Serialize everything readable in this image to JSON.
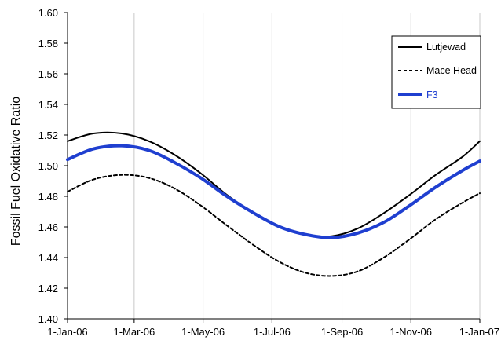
{
  "chart_data": {
    "type": "line",
    "title": "",
    "xlabel": "",
    "ylabel": "Fossil Fuel Oxidative Ratio",
    "x_ticks": [
      "1-Jan-06",
      "1-Mar-06",
      "1-May-06",
      "1-Jul-06",
      "1-Sep-06",
      "1-Nov-06",
      "1-Jan-07"
    ],
    "x_tick_dates": [
      "2006-01-01",
      "2006-03-01",
      "2006-05-01",
      "2006-07-01",
      "2006-09-01",
      "2006-11-01",
      "2007-01-01"
    ],
    "y_ticks": [
      "1.40",
      "1.42",
      "1.44",
      "1.46",
      "1.48",
      "1.50",
      "1.52",
      "1.54",
      "1.56",
      "1.58",
      "1.60"
    ],
    "xlim": [
      "2006-01-01",
      "2007-01-01"
    ],
    "ylim": [
      1.4,
      1.6
    ],
    "grid": "vertical lines at x ticks",
    "legend_position": "top-right",
    "series": [
      {
        "name": "Lutjewad",
        "style": "solid",
        "color": "#000000",
        "x": [
          "2006-01-01",
          "2006-01-24",
          "2006-02-18",
          "2006-03-14",
          "2006-04-06",
          "2006-04-29",
          "2006-05-22",
          "2006-06-15",
          "2006-07-08",
          "2006-07-31",
          "2006-08-23",
          "2006-09-15",
          "2006-10-08",
          "2006-10-31",
          "2006-11-23",
          "2006-12-17",
          "2007-01-01"
        ],
        "y": [
          1.516,
          1.521,
          1.521,
          1.516,
          1.507,
          1.495,
          1.481,
          1.469,
          1.46,
          1.455,
          1.454,
          1.459,
          1.469,
          1.481,
          1.494,
          1.506,
          1.516
        ]
      },
      {
        "name": "Mace Head",
        "style": "dashed",
        "color": "#000000",
        "x": [
          "2006-01-01",
          "2006-01-24",
          "2006-02-18",
          "2006-03-14",
          "2006-04-06",
          "2006-04-29",
          "2006-05-22",
          "2006-06-15",
          "2006-07-08",
          "2006-07-31",
          "2006-08-23",
          "2006-09-15",
          "2006-10-08",
          "2006-10-31",
          "2006-11-23",
          "2006-12-17",
          "2007-01-01"
        ],
        "y": [
          1.483,
          1.491,
          1.494,
          1.492,
          1.485,
          1.474,
          1.461,
          1.448,
          1.437,
          1.43,
          1.428,
          1.431,
          1.44,
          1.452,
          1.465,
          1.476,
          1.482
        ]
      },
      {
        "name": "F3",
        "style": "solid-thick",
        "color": "#1f3fd0",
        "x": [
          "2006-01-01",
          "2006-01-24",
          "2006-02-18",
          "2006-03-14",
          "2006-04-06",
          "2006-04-29",
          "2006-05-22",
          "2006-06-15",
          "2006-07-08",
          "2006-07-31",
          "2006-08-23",
          "2006-09-15",
          "2006-10-08",
          "2006-10-31",
          "2006-11-23",
          "2006-12-17",
          "2007-01-01"
        ],
        "y": [
          1.504,
          1.511,
          1.513,
          1.51,
          1.502,
          1.492,
          1.48,
          1.469,
          1.46,
          1.455,
          1.453,
          1.456,
          1.463,
          1.474,
          1.486,
          1.497,
          1.503
        ]
      }
    ]
  }
}
